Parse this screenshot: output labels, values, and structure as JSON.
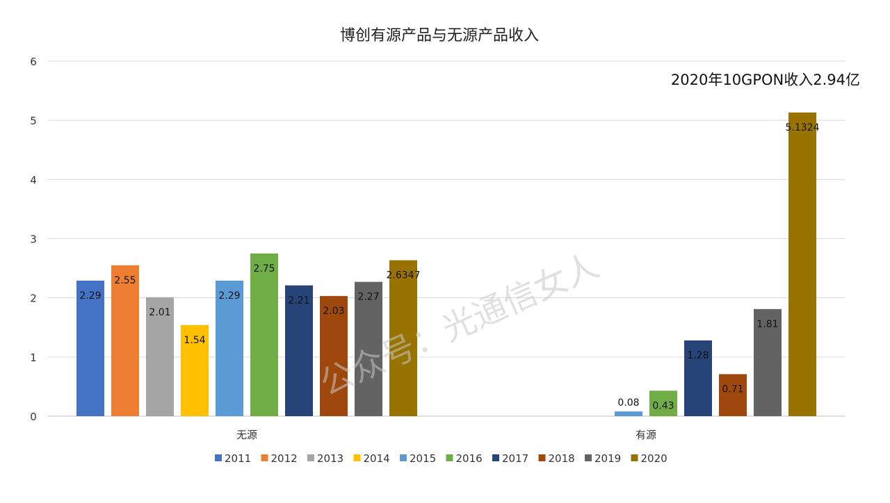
{
  "chart_data": {
    "type": "bar",
    "title": "博创有源产品与无源产品收入",
    "annotation": "2020年10GPON收入2.94亿",
    "watermark": "公众号：光通信女人",
    "categories": [
      "无源",
      "有源"
    ],
    "ylim": [
      0,
      6
    ],
    "yticks": [
      "0",
      "1",
      "2",
      "3",
      "4",
      "5",
      "6"
    ],
    "grid": true,
    "legend_position": "bottom",
    "series": [
      {
        "name": "2011",
        "color": "#4472C4",
        "values": [
          2.29,
          null
        ],
        "labels": [
          "2.29",
          null
        ]
      },
      {
        "name": "2012",
        "color": "#ED7D31",
        "values": [
          2.55,
          null
        ],
        "labels": [
          "2.55",
          null
        ]
      },
      {
        "name": "2013",
        "color": "#A5A5A5",
        "values": [
          2.01,
          null
        ],
        "labels": [
          "2.01",
          null
        ]
      },
      {
        "name": "2014",
        "color": "#FFC000",
        "values": [
          1.54,
          null
        ],
        "labels": [
          "1.54",
          null
        ]
      },
      {
        "name": "2015",
        "color": "#5B9BD5",
        "values": [
          2.29,
          0.08
        ],
        "labels": [
          "2.29",
          "0.08"
        ]
      },
      {
        "name": "2016",
        "color": "#70AD47",
        "values": [
          2.75,
          0.43
        ],
        "labels": [
          "2.75",
          "0.43"
        ]
      },
      {
        "name": "2017",
        "color": "#264478",
        "values": [
          2.21,
          1.28
        ],
        "labels": [
          "2.21",
          "1.28"
        ]
      },
      {
        "name": "2018",
        "color": "#9E480E",
        "values": [
          2.03,
          0.71
        ],
        "labels": [
          "2.03",
          "0.71"
        ]
      },
      {
        "name": "2019",
        "color": "#636363",
        "values": [
          2.27,
          1.81
        ],
        "labels": [
          "2.27",
          "1.81"
        ]
      },
      {
        "name": "2020",
        "color": "#997300",
        "values": [
          2.6347,
          5.1324
        ],
        "labels": [
          "2.6347",
          "5.1324"
        ]
      }
    ]
  }
}
